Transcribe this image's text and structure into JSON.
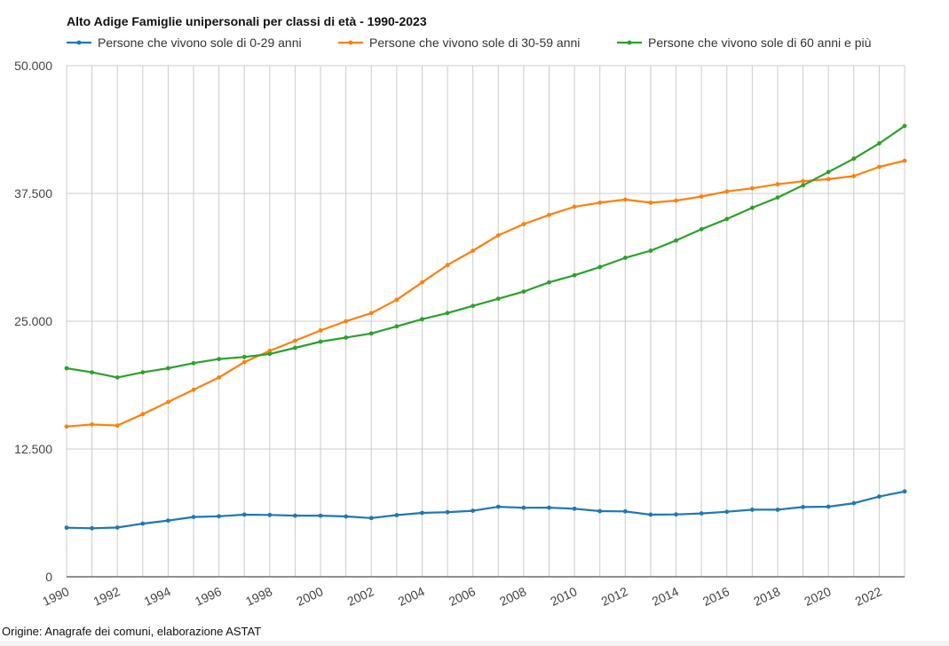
{
  "chart_data": {
    "type": "line",
    "title": "Alto Adige Famiglie unipersonali per classi di età - 1990-2023",
    "source": "Origine: Anagrafe dei comuni, elaborazione ASTAT",
    "ylim": [
      0,
      50000
    ],
    "y_ticks": [
      0,
      12500,
      25000,
      37500,
      50000
    ],
    "y_tick_labels": [
      "0",
      "12.500",
      "25.000",
      "37.500",
      "50.000"
    ],
    "x_tick_labels": [
      "1990",
      "1992",
      "1994",
      "1996",
      "1998",
      "2000",
      "2002",
      "2004",
      "2006",
      "2008",
      "2010",
      "2012",
      "2014",
      "2016",
      "2018",
      "2020",
      "2022"
    ],
    "grid": true,
    "legend_position": "top",
    "x": [
      1990,
      1991,
      1992,
      1993,
      1994,
      1995,
      1996,
      1997,
      1998,
      1999,
      2000,
      2001,
      2002,
      2003,
      2004,
      2005,
      2006,
      2007,
      2008,
      2009,
      2010,
      2011,
      2012,
      2013,
      2014,
      2015,
      2016,
      2017,
      2018,
      2019,
      2020,
      2021,
      2022,
      2023
    ],
    "series": [
      {
        "name": "Persone che vivono sole di 0-29 anni",
        "color": "#1f77b4",
        "values": [
          4800,
          4750,
          4820,
          5200,
          5500,
          5850,
          5920,
          6080,
          6050,
          5980,
          5980,
          5900,
          5750,
          6030,
          6250,
          6320,
          6460,
          6850,
          6750,
          6760,
          6660,
          6420,
          6400,
          6080,
          6100,
          6200,
          6360,
          6560,
          6560,
          6820,
          6860,
          7200,
          7850,
          8350
        ]
      },
      {
        "name": "Persone che vivono sole di 30-59 anni",
        "color": "#ff7f0e",
        "values": [
          14700,
          14900,
          14800,
          15900,
          17100,
          18300,
          19500,
          21000,
          22100,
          23100,
          24100,
          25000,
          25800,
          27100,
          28800,
          30500,
          31900,
          33400,
          34500,
          35400,
          36200,
          36600,
          36900,
          36600,
          36800,
          37200,
          37700,
          38000,
          38400,
          38700,
          38900,
          39200,
          40100,
          40700
        ]
      },
      {
        "name": "Persone che vivono sole di 60 anni e più",
        "color": "#2ca02c",
        "values": [
          20400,
          20000,
          19500,
          20000,
          20400,
          20900,
          21300,
          21500,
          21800,
          22400,
          23000,
          23400,
          23800,
          24500,
          25200,
          25800,
          26500,
          27200,
          27900,
          28800,
          29500,
          30300,
          31200,
          31900,
          32900,
          34000,
          35000,
          36100,
          37100,
          38300,
          39600,
          40900,
          42400,
          44100
        ]
      }
    ]
  }
}
